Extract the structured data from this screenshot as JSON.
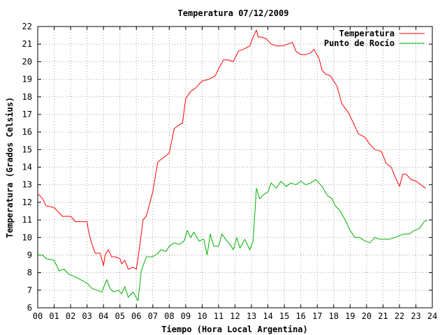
{
  "chart_data": {
    "type": "line",
    "title": "Temperatura 07/12/2009",
    "xlabel": "Tiempo (Hora Local Argentina)",
    "ylabel": "Temperatura (Grados Celsius)",
    "xlim": [
      0,
      24
    ],
    "ylim": [
      6,
      22
    ],
    "x_ticks": [
      "00",
      "01",
      "02",
      "03",
      "04",
      "05",
      "06",
      "07",
      "08",
      "09",
      "10",
      "11",
      "12",
      "13",
      "14",
      "15",
      "16",
      "17",
      "18",
      "19",
      "20",
      "21",
      "22",
      "23",
      "24"
    ],
    "y_ticks": [
      "6",
      "7",
      "8",
      "9",
      "10",
      "11",
      "12",
      "13",
      "14",
      "15",
      "16",
      "17",
      "18",
      "19",
      "20",
      "21",
      "22"
    ],
    "grid": true,
    "legend_position": "top-right",
    "series": [
      {
        "name": "Temperatura",
        "color": "#ff0000",
        "x": [
          0.0,
          0.3,
          0.5,
          1.0,
          1.5,
          2.0,
          2.3,
          2.7,
          3.0,
          3.1,
          3.3,
          3.5,
          3.8,
          4.0,
          4.1,
          4.3,
          4.5,
          4.7,
          5.0,
          5.1,
          5.3,
          5.5,
          5.8,
          6.0,
          6.2,
          6.4,
          6.6,
          7.0,
          7.3,
          7.6,
          8.0,
          8.3,
          8.6,
          8.8,
          9.0,
          9.3,
          9.6,
          10.0,
          10.4,
          10.8,
          11.0,
          11.3,
          11.6,
          11.9,
          12.2,
          12.5,
          12.9,
          13.1,
          13.3,
          13.4,
          13.6,
          13.9,
          14.2,
          14.5,
          14.9,
          15.2,
          15.5,
          15.7,
          16.0,
          16.3,
          16.6,
          16.8,
          17.1,
          17.3,
          17.5,
          17.8,
          18.2,
          18.5,
          18.9,
          19.2,
          19.5,
          19.9,
          20.2,
          20.5,
          20.9,
          21.2,
          21.5,
          21.8,
          22.0,
          22.2,
          22.4,
          22.7,
          23.0,
          23.3,
          23.6
        ],
        "values": [
          12.5,
          12.2,
          11.8,
          11.7,
          11.2,
          11.2,
          10.9,
          10.9,
          10.9,
          10.3,
          9.6,
          9.1,
          9.1,
          8.4,
          9.0,
          9.3,
          8.9,
          8.9,
          8.8,
          8.5,
          8.7,
          8.2,
          8.3,
          8.2,
          9.5,
          11.0,
          11.2,
          12.6,
          14.3,
          14.5,
          14.8,
          16.2,
          16.4,
          16.5,
          17.9,
          18.3,
          18.5,
          18.9,
          19.0,
          19.2,
          19.6,
          20.1,
          20.1,
          20.0,
          20.6,
          20.7,
          20.9,
          21.4,
          21.8,
          21.4,
          21.4,
          21.3,
          21.0,
          20.9,
          20.9,
          21.0,
          21.1,
          20.6,
          20.4,
          20.4,
          20.5,
          20.7,
          20.2,
          19.5,
          19.3,
          19.2,
          18.6,
          17.6,
          17.1,
          16.5,
          15.9,
          15.7,
          15.3,
          15.0,
          14.9,
          14.2,
          14.0,
          13.3,
          12.9,
          13.6,
          13.6,
          13.3,
          13.2,
          13.0,
          12.8
        ]
      },
      {
        "name": "Punto de Rocío",
        "color": "#00b000",
        "x": [
          0.0,
          0.3,
          0.5,
          1.0,
          1.3,
          1.6,
          1.9,
          2.2,
          2.6,
          3.0,
          3.3,
          3.6,
          3.9,
          4.2,
          4.4,
          4.6,
          4.9,
          5.1,
          5.3,
          5.5,
          5.8,
          6.1,
          6.3,
          6.6,
          7.0,
          7.3,
          7.5,
          7.8,
          8.0,
          8.3,
          8.6,
          8.9,
          9.1,
          9.3,
          9.5,
          9.8,
          10.1,
          10.3,
          10.5,
          10.7,
          11.0,
          11.2,
          11.5,
          11.7,
          11.9,
          12.1,
          12.3,
          12.6,
          12.9,
          13.1,
          13.3,
          13.5,
          13.7,
          14.0,
          14.2,
          14.5,
          14.8,
          15.1,
          15.4,
          15.7,
          16.0,
          16.3,
          16.6,
          16.9,
          17.1,
          17.3,
          17.6,
          17.9,
          18.1,
          18.4,
          18.7,
          19.0,
          19.3,
          19.6,
          19.9,
          20.2,
          20.5,
          20.8,
          21.1,
          21.4,
          21.7,
          22.0,
          22.3,
          22.6,
          22.9,
          23.2,
          23.5,
          23.7
        ],
        "values": [
          9.0,
          9.0,
          8.8,
          8.7,
          8.1,
          8.2,
          7.9,
          7.8,
          7.6,
          7.4,
          7.1,
          7.0,
          6.9,
          7.6,
          7.1,
          6.9,
          7.0,
          6.8,
          7.2,
          6.6,
          6.9,
          6.4,
          8.1,
          8.9,
          8.9,
          9.1,
          9.3,
          9.2,
          9.5,
          9.7,
          9.6,
          9.8,
          10.4,
          10.0,
          10.3,
          9.8,
          9.9,
          9.0,
          10.2,
          9.5,
          9.5,
          10.2,
          9.8,
          9.6,
          9.3,
          10.0,
          9.4,
          9.9,
          9.3,
          9.8,
          12.8,
          12.2,
          12.4,
          12.6,
          13.1,
          12.8,
          13.2,
          12.9,
          13.1,
          13.0,
          13.2,
          13.0,
          13.1,
          13.3,
          13.1,
          12.9,
          12.4,
          12.2,
          11.8,
          11.5,
          11.0,
          10.4,
          10.0,
          10.0,
          9.8,
          9.7,
          10.0,
          9.9,
          9.9,
          9.9,
          10.0,
          10.1,
          10.2,
          10.2,
          10.4,
          10.5,
          10.9,
          11.0
        ]
      }
    ]
  }
}
